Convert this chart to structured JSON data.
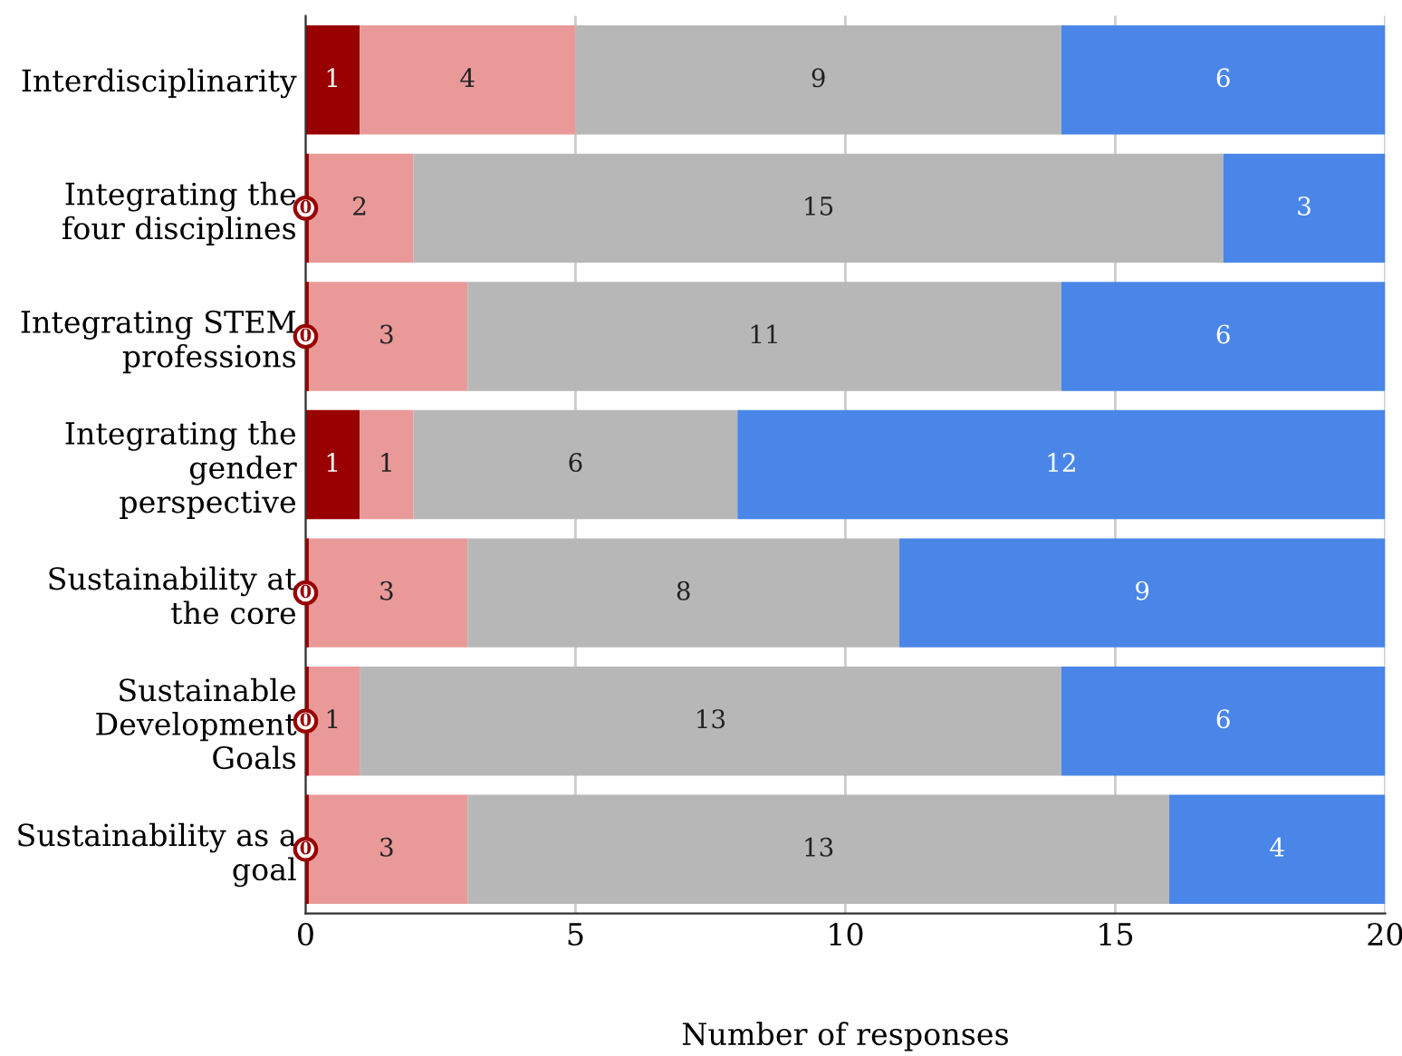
{
  "chart_data": {
    "type": "bar",
    "orientation": "horizontal",
    "stacked": true,
    "data_labels": true,
    "grid": "x",
    "legend": false,
    "categories": [
      "Interdisciplinarity",
      "Integrating the\nfour disciplines",
      "Integrating STEM\nprofessions",
      "Integrating the\ngender\nperspective",
      "Sustainability at\nthe core",
      "Sustainable\nDevelopment\nGoals",
      "Sustainability as a\ngoal"
    ],
    "series": [
      {
        "color": "#990000",
        "values": [
          1,
          0,
          0,
          1,
          0,
          0,
          0
        ]
      },
      {
        "color": "#ea9999",
        "values": [
          4,
          2,
          3,
          1,
          3,
          1,
          3
        ]
      },
      {
        "color": "#b7b7b7",
        "values": [
          9,
          15,
          11,
          6,
          8,
          13,
          13
        ]
      },
      {
        "color": "#4a86e8",
        "values": [
          6,
          3,
          6,
          12,
          9,
          6,
          4
        ]
      }
    ],
    "xlim": [
      0,
      20
    ],
    "xticks": [
      0,
      5,
      10,
      15,
      20
    ],
    "xlabel": "Number of responses"
  }
}
